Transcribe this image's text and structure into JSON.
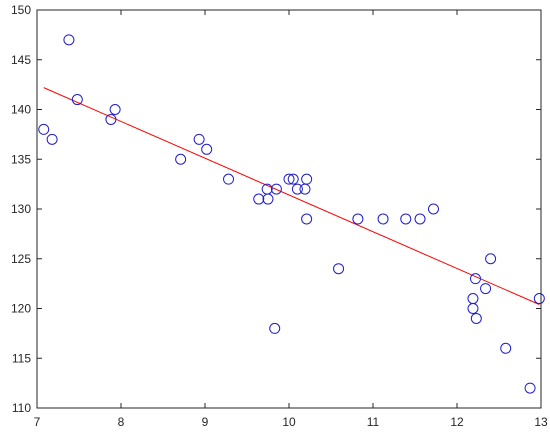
{
  "chart_data": {
    "type": "scatter",
    "title": "",
    "xlabel": "",
    "ylabel": "",
    "xlim": [
      7,
      13
    ],
    "ylim": [
      110,
      150
    ],
    "x_ticks": [
      7,
      8,
      9,
      10,
      11,
      12,
      13
    ],
    "y_ticks": [
      110,
      115,
      120,
      125,
      130,
      135,
      140,
      145,
      150
    ],
    "grid": false,
    "series": [
      {
        "kind": "scatter",
        "marker": "circle-open",
        "color": "#1f1fcc",
        "points": [
          [
            7.08,
            138
          ],
          [
            7.18,
            137
          ],
          [
            7.38,
            147
          ],
          [
            7.48,
            141
          ],
          [
            7.88,
            139
          ],
          [
            7.93,
            140
          ],
          [
            8.71,
            135
          ],
          [
            8.93,
            137
          ],
          [
            9.02,
            136
          ],
          [
            9.28,
            133
          ],
          [
            9.64,
            131
          ],
          [
            9.74,
            132
          ],
          [
            9.75,
            131
          ],
          [
            9.83,
            118
          ],
          [
            9.85,
            132
          ],
          [
            10.0,
            133
          ],
          [
            10.05,
            133
          ],
          [
            10.1,
            132
          ],
          [
            10.19,
            132
          ],
          [
            10.21,
            133
          ],
          [
            10.21,
            129
          ],
          [
            10.59,
            124
          ],
          [
            10.82,
            129
          ],
          [
            11.12,
            129
          ],
          [
            11.39,
            129
          ],
          [
            11.56,
            129
          ],
          [
            11.72,
            130
          ],
          [
            12.19,
            121
          ],
          [
            12.19,
            120
          ],
          [
            12.22,
            123
          ],
          [
            12.23,
            119
          ],
          [
            12.34,
            122
          ],
          [
            12.4,
            125
          ],
          [
            12.58,
            116
          ],
          [
            12.87,
            112
          ],
          [
            12.98,
            121
          ]
        ]
      },
      {
        "kind": "line",
        "color": "#ff0000",
        "points": [
          [
            7.08,
            142.2
          ],
          [
            12.98,
            120.4
          ]
        ]
      }
    ]
  }
}
